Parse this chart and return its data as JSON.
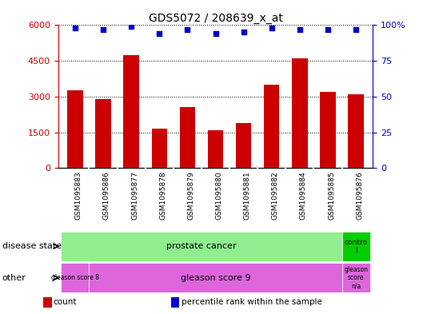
{
  "title": "GDS5072 / 208639_x_at",
  "samples": [
    "GSM1095883",
    "GSM1095886",
    "GSM1095877",
    "GSM1095878",
    "GSM1095879",
    "GSM1095880",
    "GSM1095881",
    "GSM1095882",
    "GSM1095884",
    "GSM1095885",
    "GSM1095876"
  ],
  "bar_values": [
    3250,
    2900,
    4750,
    1650,
    2550,
    1600,
    1900,
    3500,
    4600,
    3200,
    3100
  ],
  "percentile_values": [
    98,
    97,
    99,
    94,
    97,
    94,
    95,
    98,
    97,
    97,
    97
  ],
  "bar_color": "#cc0000",
  "dot_color": "#0000cc",
  "ylim_left": [
    0,
    6000
  ],
  "ylim_right": [
    0,
    100
  ],
  "yticks_left": [
    0,
    1500,
    3000,
    4500,
    6000
  ],
  "yticks_right": [
    0,
    25,
    50,
    75,
    100
  ],
  "disease_state_colors": {
    "prostate cancer": "#90ee90",
    "control": "#00cc00"
  },
  "other_colors": {
    "gleason score 8": "#dd66dd",
    "gleason score 9": "#dd66dd",
    "gleason score n/a": "#dd66dd"
  },
  "legend_items": [
    {
      "label": "count",
      "color": "#cc0000"
    },
    {
      "label": "percentile rank within the sample",
      "color": "#0000cc"
    }
  ],
  "bg_color": "#ffffff",
  "tick_label_bg": "#d3d3d3",
  "control_color": "#00bb00",
  "violet_color": "#dd55dd"
}
